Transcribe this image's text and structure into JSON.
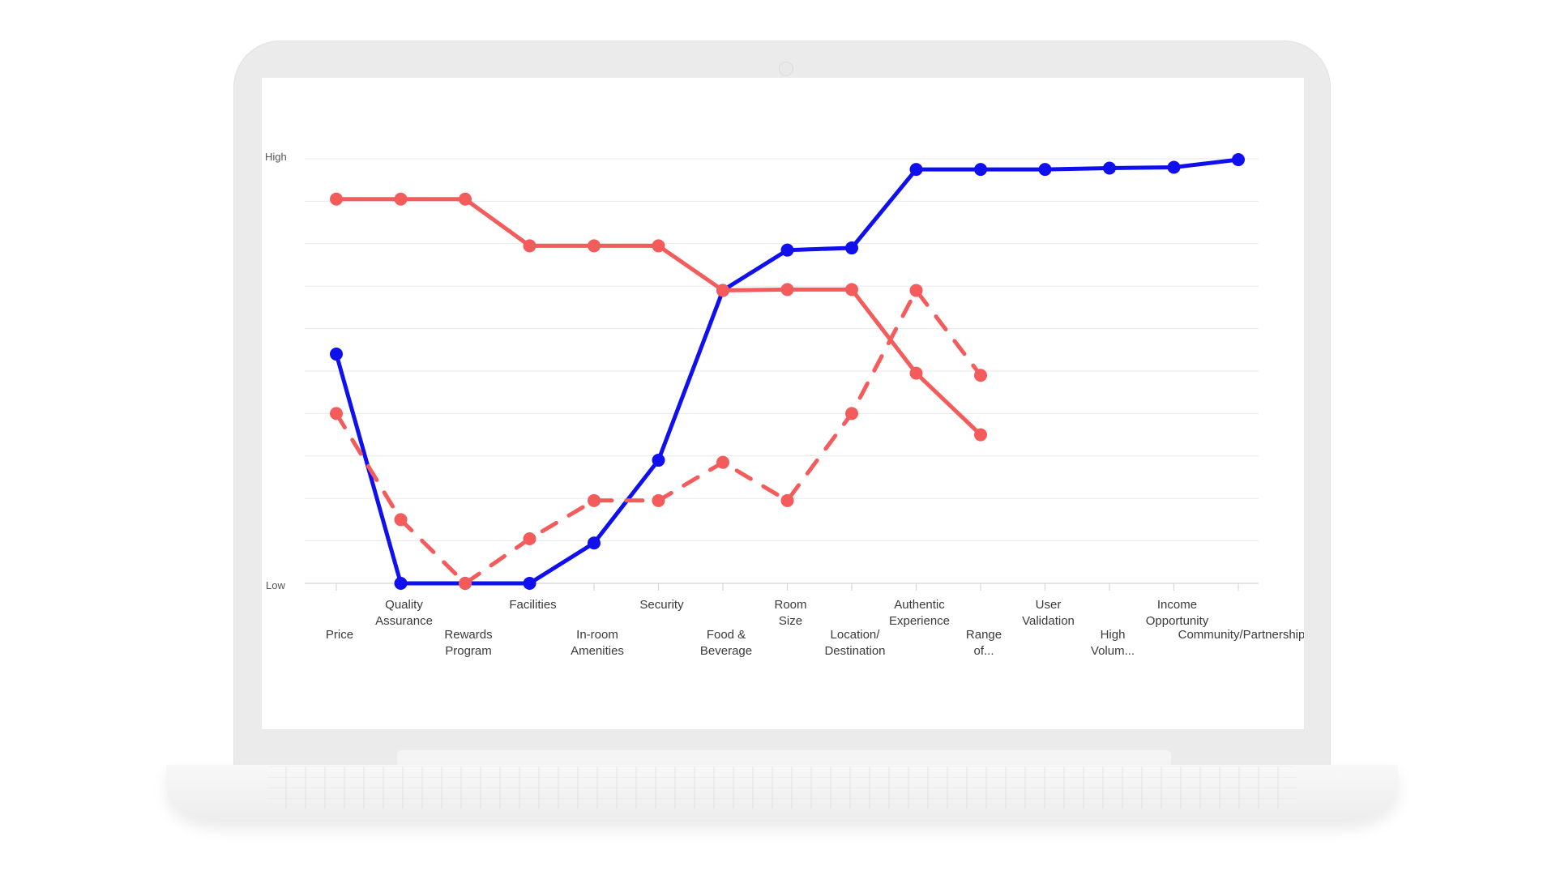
{
  "chart_data": {
    "type": "line",
    "y_tick_labels": [
      "High",
      "Low"
    ],
    "ylim": [
      0,
      10
    ],
    "categories": [
      "Price",
      "Quality Assurance",
      "Rewards Program",
      "Facilities",
      "In-room Amenities",
      "Security",
      "Food & Beverage",
      "Room Size",
      "Location/ Destination",
      "Authentic Experience",
      "Range of...",
      "User Validation",
      "High Volum...",
      "Income Opportunity",
      "Community/Partnership"
    ],
    "series": [
      {
        "color": "#1010ee",
        "style": "solid",
        "values": [
          5.4,
          0,
          0,
          0,
          0.95,
          2.9,
          6.9,
          7.85,
          7.9,
          9.75,
          9.75,
          9.75,
          9.78,
          9.8,
          9.98
        ]
      },
      {
        "color": "#f45b5b",
        "style": "solid",
        "values": [
          9.05,
          9.05,
          9.05,
          7.95,
          7.95,
          7.95,
          6.9,
          6.92,
          6.92,
          4.95,
          3.5,
          null,
          null,
          null,
          null
        ]
      },
      {
        "color": "#f45b5b",
        "style": "dashed",
        "values": [
          4.0,
          1.5,
          0,
          1.05,
          1.95,
          1.95,
          2.85,
          1.95,
          4.0,
          6.9,
          4.9,
          null,
          null,
          null,
          null
        ]
      }
    ]
  }
}
